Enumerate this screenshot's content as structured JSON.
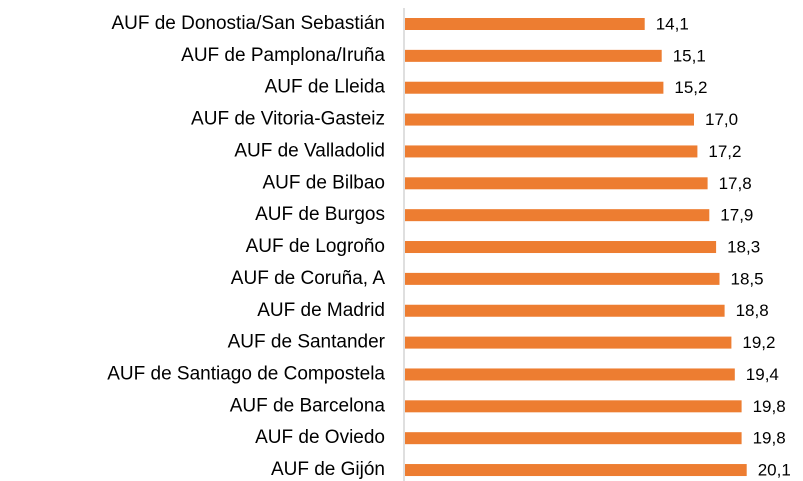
{
  "chart_data": {
    "type": "bar",
    "orientation": "horizontal",
    "color": "#ed7d31",
    "categories": [
      "AUF de Donostia/San Sebastián",
      "AUF de Pamplona/Iruña",
      "AUF de Lleida",
      "AUF de Vitoria-Gasteiz",
      "AUF de Valladolid",
      "AUF de Bilbao",
      "AUF de Burgos",
      "AUF de Logroño",
      "AUF de Coruña, A",
      "AUF de Madrid",
      "AUF de Santander",
      "AUF de Santiago de Compostela",
      "AUF de Barcelona",
      "AUF de Oviedo",
      "AUF de Gijón"
    ],
    "values": [
      14.1,
      15.1,
      15.2,
      17.0,
      17.2,
      17.8,
      17.9,
      18.3,
      18.5,
      18.8,
      19.2,
      19.4,
      19.8,
      19.8,
      20.1
    ],
    "value_labels": [
      "14,1",
      "15,1",
      "15,2",
      "17,0",
      "17,2",
      "17,8",
      "17,9",
      "18,3",
      "18,5",
      "18,8",
      "19,2",
      "19,4",
      "19,8",
      "19,8",
      "20,1"
    ]
  }
}
